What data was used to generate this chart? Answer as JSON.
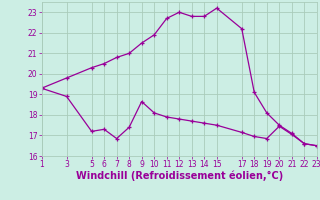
{
  "x_upper": [
    1,
    3,
    5,
    6,
    7,
    8,
    9,
    10,
    11,
    12,
    13,
    14,
    15,
    17,
    18,
    19,
    20,
    21,
    22,
    23
  ],
  "y_upper": [
    19.3,
    19.8,
    20.3,
    20.5,
    20.8,
    21.0,
    21.5,
    21.9,
    22.7,
    23.0,
    22.8,
    22.8,
    23.2,
    22.2,
    19.1,
    18.1,
    17.5,
    17.1,
    16.6,
    16.5
  ],
  "x_lower": [
    1,
    3,
    5,
    6,
    7,
    8,
    9,
    10,
    11,
    12,
    13,
    14,
    15,
    17,
    18,
    19,
    20,
    21,
    22,
    23
  ],
  "y_lower": [
    19.3,
    18.9,
    17.2,
    17.3,
    16.85,
    17.4,
    18.65,
    18.1,
    17.9,
    17.8,
    17.7,
    17.6,
    17.5,
    17.15,
    16.95,
    16.85,
    17.45,
    17.05,
    16.6,
    16.5
  ],
  "color": "#990099",
  "bg_color": "#cceee4",
  "grid_color": "#aaccbb",
  "xlabel": "Windchill (Refroidissement éolien,°C)",
  "xlim": [
    1,
    23
  ],
  "ylim": [
    16,
    23.5
  ],
  "yticks": [
    16,
    17,
    18,
    19,
    20,
    21,
    22,
    23
  ],
  "xticks": [
    1,
    3,
    5,
    6,
    7,
    8,
    9,
    10,
    11,
    12,
    13,
    14,
    15,
    17,
    18,
    19,
    20,
    21,
    22,
    23
  ],
  "tick_fontsize": 5.5,
  "xlabel_fontsize": 7.0
}
